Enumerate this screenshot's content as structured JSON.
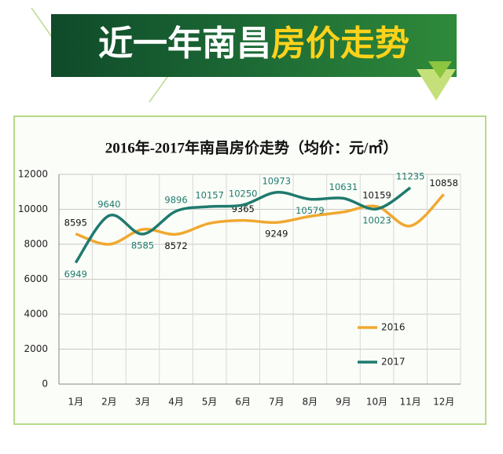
{
  "banner": {
    "title_white": "近一年南昌",
    "title_yellow": "房价走势"
  },
  "chart_data": {
    "type": "line",
    "title": "2016年-2017年南昌房价走势（均价：元/㎡）",
    "categories": [
      "1月",
      "2月",
      "3月",
      "4月",
      "5月",
      "6月",
      "7月",
      "8月",
      "9月",
      "10月",
      "11月",
      "12月"
    ],
    "series": [
      {
        "name": "2016",
        "color": "#f0a830",
        "values": [
          8595,
          8000,
          8850,
          8572,
          9200,
          9365,
          9249,
          9600,
          9850,
          10159,
          9050,
          10858
        ],
        "value_labels": [
          "8595",
          null,
          null,
          "8572",
          null,
          "9365",
          "9249",
          null,
          null,
          "10159",
          null,
          "10858"
        ]
      },
      {
        "name": "2017",
        "color": "#1f7a6e",
        "values": [
          6949,
          9640,
          8585,
          9896,
          10157,
          10250,
          10973,
          10579,
          10631,
          10023,
          11235,
          null
        ],
        "value_labels": [
          "6949",
          "9640",
          "8585",
          "9896",
          "10157",
          "10250",
          "10973",
          "10579",
          "10631",
          "10023",
          "11235",
          null
        ]
      }
    ],
    "ylim": [
      0,
      12000
    ],
    "yticks": [
      0,
      2000,
      4000,
      6000,
      8000,
      10000,
      12000
    ],
    "grid": true,
    "legend": "right"
  }
}
